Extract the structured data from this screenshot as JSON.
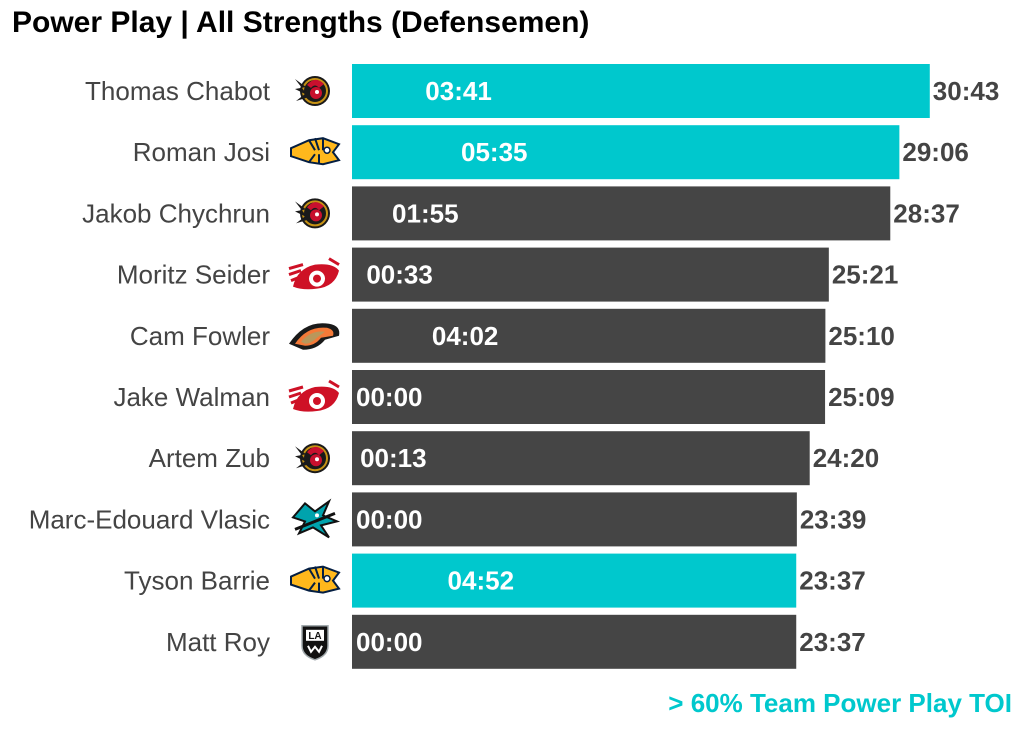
{
  "chart_data": {
    "type": "bar",
    "orientation": "horizontal",
    "title": "Power Play | All Strengths (Defensemen)",
    "note": "> 60% Team Power Play TOI",
    "colors": {
      "highlight": "#00c8cd",
      "default": "#454545"
    },
    "rows": [
      {
        "player": "Thomas Chabot",
        "team_icon": "ottawa-senators-logo-icon",
        "total_toi": "30:43",
        "total_min": 30.717,
        "pp_toi": "03:41",
        "highlight": true
      },
      {
        "player": "Roman Josi",
        "team_icon": "nashville-predators-logo-icon",
        "total_toi": "29:06",
        "total_min": 29.1,
        "pp_toi": "05:35",
        "highlight": true
      },
      {
        "player": "Jakob Chychrun",
        "team_icon": "ottawa-senators-logo-icon",
        "total_toi": "28:37",
        "total_min": 28.617,
        "pp_toi": "01:55",
        "highlight": false
      },
      {
        "player": "Moritz Seider",
        "team_icon": "detroit-red-wings-logo-icon",
        "total_toi": "25:21",
        "total_min": 25.35,
        "pp_toi": "00:33",
        "highlight": false
      },
      {
        "player": "Cam Fowler",
        "team_icon": "anaheim-ducks-logo-icon",
        "total_toi": "25:10",
        "total_min": 25.167,
        "pp_toi": "04:02",
        "highlight": false
      },
      {
        "player": "Jake Walman",
        "team_icon": "detroit-red-wings-logo-icon",
        "total_toi": "25:09",
        "total_min": 25.15,
        "pp_toi": "00:00",
        "highlight": false
      },
      {
        "player": "Artem Zub",
        "team_icon": "ottawa-senators-logo-icon",
        "total_toi": "24:20",
        "total_min": 24.333,
        "pp_toi": "00:13",
        "highlight": false
      },
      {
        "player": "Marc-Edouard Vlasic",
        "team_icon": "san-jose-sharks-logo-icon",
        "total_toi": "23:39",
        "total_min": 23.65,
        "pp_toi": "00:00",
        "highlight": false
      },
      {
        "player": "Tyson Barrie",
        "team_icon": "nashville-predators-logo-icon",
        "total_toi": "23:37",
        "total_min": 23.617,
        "pp_toi": "04:52",
        "highlight": true
      },
      {
        "player": "Matt Roy",
        "team_icon": "los-angeles-kings-logo-icon",
        "total_toi": "23:37",
        "total_min": 23.617,
        "pp_toi": "00:00",
        "highlight": false
      }
    ],
    "logo_text": {
      "kings_logo": "LA"
    }
  }
}
